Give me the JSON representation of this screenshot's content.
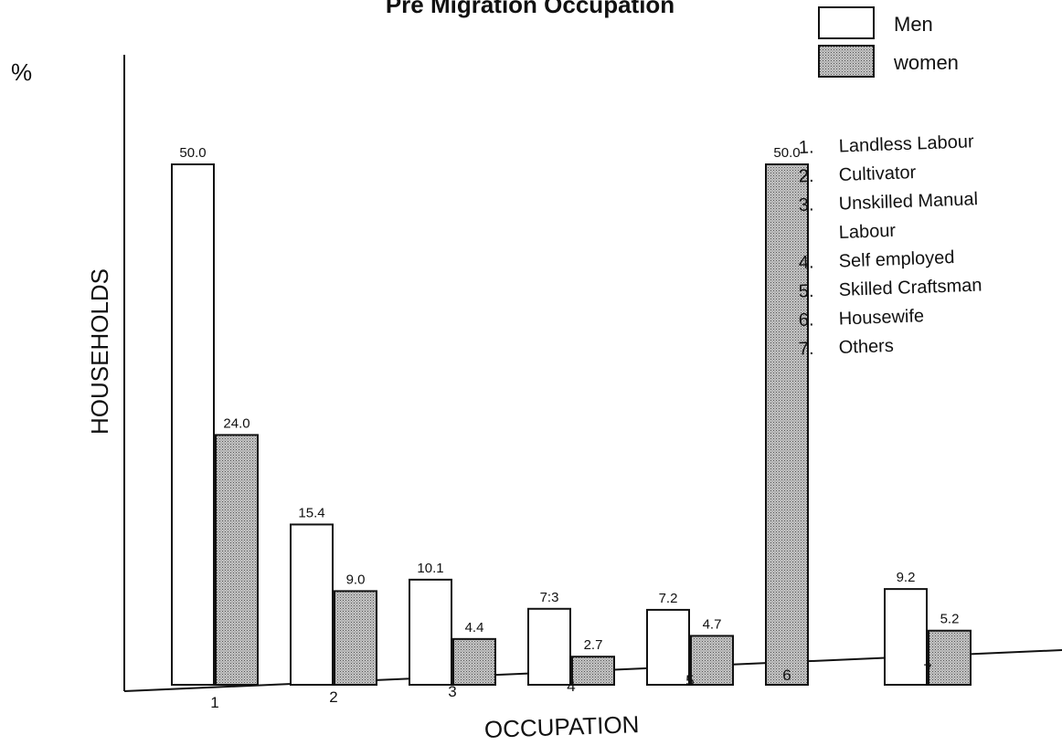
{
  "chart_data": {
    "type": "bar",
    "title": "Pre Migration Occupation",
    "xlabel": "OCCUPATION",
    "ylabel": "HOUSEHOLDS",
    "y_unit": "%",
    "ylim": [
      0,
      50
    ],
    "grid": false,
    "legend_position": "top-right",
    "categories": [
      "1",
      "2",
      "3",
      "4",
      "5",
      "6",
      "7"
    ],
    "category_key": [
      {
        "num": "1.",
        "text": "Landless Labour"
      },
      {
        "num": "2.",
        "text": "Cultivator"
      },
      {
        "num": "3.",
        "text": "Unskilled Manual"
      },
      {
        "num": "",
        "text": "Labour"
      },
      {
        "num": "4.",
        "text": "Self employed"
      },
      {
        "num": "5.",
        "text": "Skilled Craftsman"
      },
      {
        "num": "6.",
        "text": "Housewife"
      },
      {
        "num": "7.",
        "text": "Others"
      }
    ],
    "series": [
      {
        "name": "Men",
        "color": "#ffffff",
        "values": [
          50.0,
          15.4,
          10.1,
          7.3,
          7.2,
          null,
          9.2
        ],
        "labels": [
          "50.0",
          "15.4",
          "10.1",
          "7:3",
          "7.2",
          "",
          "9.2"
        ]
      },
      {
        "name": "women",
        "color": "#b3b3b3",
        "values": [
          24.0,
          9.0,
          4.4,
          2.7,
          4.7,
          50.0,
          5.2
        ],
        "labels": [
          "24.0",
          "9.0",
          "4.4",
          "2.7",
          "4.7",
          "50.0",
          "5.2"
        ]
      }
    ]
  }
}
